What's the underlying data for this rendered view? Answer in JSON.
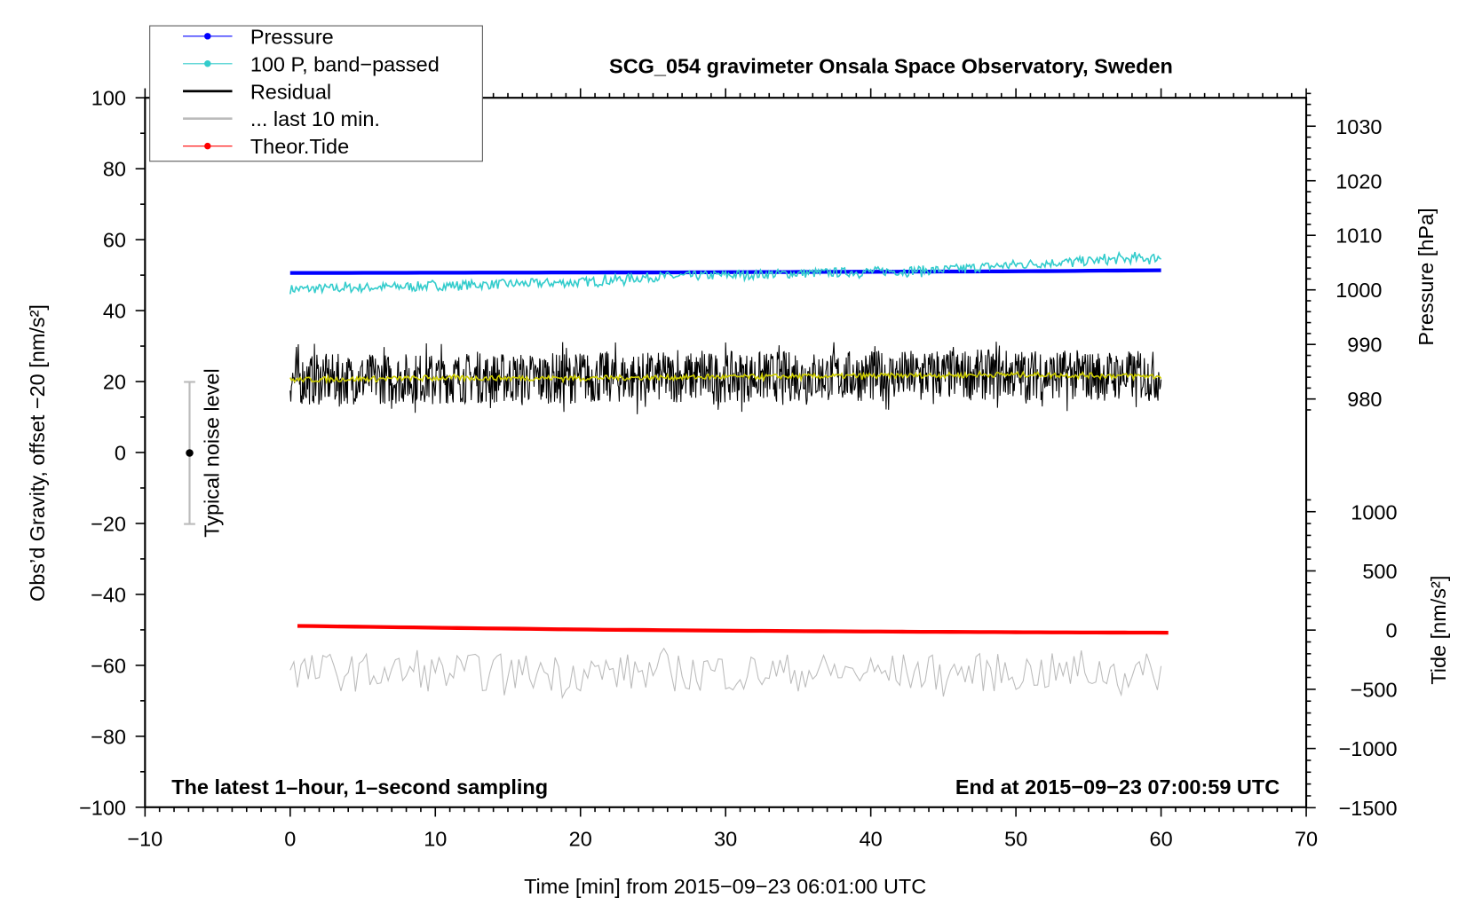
{
  "chart_data": {
    "type": "line",
    "title": "SCG_054 gravimeter Onsala Space Observatory, Sweden",
    "xlabel": "Time [min] from 2015−09−23 06:01:00 UTC",
    "ylabel": "Obs’d Gravity, offset −20 [nm/s²]",
    "ylabel_pressure": "Pressure [hPa]",
    "ylabel_tide": "Tide [nm/s²]",
    "annotation_left": "The latest 1–hour, 1–second sampling",
    "annotation_right": "End at 2015−09−23 07:00:59 UTC",
    "noise_label": "Typical noise level",
    "noise_range": [
      -20,
      20
    ],
    "xlim": [
      -10,
      70
    ],
    "ylim": [
      -100,
      100
    ],
    "pressure_lim": [
      980,
      1030
    ],
    "tide_lim": [
      -1500,
      1000
    ],
    "x_ticks": [
      "−10",
      "0",
      "10",
      "20",
      "30",
      "40",
      "50",
      "60",
      "70"
    ],
    "y_ticks": [
      "100",
      "80",
      "60",
      "40",
      "20",
      "0",
      "−20",
      "−40",
      "−60",
      "−80",
      "−100"
    ],
    "pressure_ticks": [
      "1030",
      "1020",
      "1010",
      "1000",
      "990",
      "980"
    ],
    "tide_ticks": [
      "1000",
      "500",
      "0",
      "−500",
      "−1000",
      "−1500"
    ],
    "legend": [
      {
        "label": "Pressure",
        "color": "#0000ff",
        "marker": true
      },
      {
        "label": "100 P, band−passed",
        "color": "#33cccc",
        "marker": true
      },
      {
        "label": "Residual",
        "color": "#000000",
        "marker": false
      },
      {
        "label": "... last 10 min.",
        "color": "#bbbbbb",
        "marker": false
      },
      {
        "label": "Theor.Tide",
        "color": "#ff0000",
        "marker": true
      }
    ],
    "series": [
      {
        "name": "Pressure",
        "axis": "pressure",
        "color": "#0000ff",
        "x": [
          0,
          25,
          50,
          60
        ],
        "values": [
          1003.1,
          1003.2,
          1003.4,
          1003.6
        ]
      },
      {
        "name": "100 P, band-passed",
        "axis": "gravity",
        "color": "#33cccc",
        "x": [
          0,
          10,
          20,
          25,
          30,
          40,
          45,
          50,
          55,
          60
        ],
        "values": [
          46,
          47,
          48,
          49.5,
          50,
          51,
          51.5,
          53,
          54,
          55
        ],
        "noise": 1.5
      },
      {
        "name": "Residual",
        "axis": "gravity",
        "color": "#000000",
        "x": [
          0,
          10,
          20,
          30,
          40,
          50,
          60
        ],
        "values": [
          20.5,
          21,
          21,
          21.3,
          21.6,
          22,
          21.5
        ],
        "noise": 8
      },
      {
        "name": "Residual smoothed",
        "axis": "gravity",
        "color": "#cccc00",
        "x": [
          0,
          10,
          20,
          30,
          40,
          50,
          60
        ],
        "values": [
          20.5,
          21,
          21,
          21.3,
          21.6,
          22,
          21.5
        ],
        "noise": 0.8
      },
      {
        "name": "... last 10 min.",
        "axis": "gravity",
        "color": "#bbbbbb",
        "x": [
          0,
          60
        ],
        "values": [
          -62,
          -62
        ],
        "noise": 6
      },
      {
        "name": "Theor.Tide",
        "axis": "tide",
        "color": "#ff0000",
        "x": [
          0.5,
          10,
          20,
          30,
          40,
          50,
          60.5
        ],
        "values": [
          35,
          20,
          5,
          -5,
          -12,
          -18,
          -22
        ]
      }
    ]
  }
}
